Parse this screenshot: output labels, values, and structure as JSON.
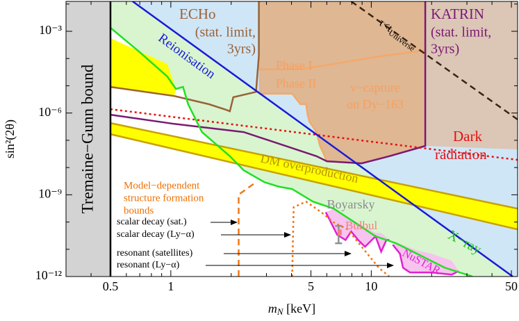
{
  "chart_data": {
    "type": "line",
    "log_x": true,
    "log_y": true,
    "xlabel": [
      "m",
      "N",
      " [keV]"
    ],
    "ylabel": "sin²(2θ)",
    "xlim": [
      0.3,
      53.7
    ],
    "ylim": [
      1e-12,
      0.0125
    ],
    "xticks": [
      0.5,
      1,
      5,
      10,
      50
    ],
    "xminorticks": [
      0.4,
      0.6,
      0.7,
      0.8,
      0.9,
      2,
      3,
      4,
      6,
      7,
      8,
      9,
      20,
      30,
      40
    ],
    "yticks": [
      {
        "value": 0.001,
        "label": "10⁻³"
      },
      {
        "value": 1e-06,
        "label": "10⁻⁶"
      },
      {
        "value": 1e-09,
        "label": "10⁻⁹"
      },
      {
        "value": 1e-12,
        "label": "10⁻¹²"
      }
    ],
    "yminorticks": [
      1e-11,
      1e-10,
      1e-08,
      1e-07,
      1e-05,
      0.0001,
      0.01
    ],
    "series": [
      {
        "style": "fill",
        "color": "#cfe6f7",
        "x": [
          0.645,
          53.7,
          53.7,
          50.8
        ],
        "y": [
          0.0125,
          0.0125,
          1e-12,
          1e-12
        ]
      },
      {
        "style": "fill",
        "color": "#d8f5d0",
        "x": [
          0.5,
          0.645,
          50.8,
          32.0,
          23.3,
          16.9,
          13.3,
          10.5,
          8.26,
          6.5,
          5.12,
          4.03,
          3.44,
          2.93,
          2.31,
          1.97,
          1.43,
          1.22,
          1.15,
          1.06,
          0.96,
          0.7,
          0.5
        ],
        "y": [
          0.0125,
          0.0125,
          1e-12,
          1e-12,
          2.1e-12,
          6.9e-12,
          1.66e-11,
          3e-11,
          9.7e-11,
          3.1e-10,
          5.6e-10,
          1.62e-09,
          2e-09,
          2.9e-09,
          7.9e-09,
          2.6e-08,
          2e-07,
          2.1e-06,
          9.1e-06,
          7.6e-06,
          2.2e-05,
          0.00017,
          0.00134
        ]
      },
      {
        "style": "fill",
        "color": "#dfb792",
        "x": [
          2.75,
          18.6,
          18.6,
          12.3,
          8.95,
          6.01,
          5.55,
          5.33,
          4.92,
          4.81,
          4.73,
          4.43,
          4.03,
          2.75
        ],
        "y": [
          0.0125,
          0.0125,
          6.2e-08,
          2.6e-08,
          1.42e-08,
          1.7e-08,
          6.2e-08,
          2e-07,
          4.8e-07,
          8.7e-07,
          2.1e-06,
          2.1e-06,
          5.1e-06,
          5.1e-06
        ]
      },
      {
        "style": "fill",
        "color": "#dcc6b6",
        "x": [
          18.6,
          53.7,
          53.7,
          18.6
        ],
        "y": [
          0.0125,
          0.0125,
          4.6e-08,
          6.2e-08
        ]
      },
      {
        "style": "fill",
        "color": "#ffff00",
        "x": [
          0.5,
          0.96,
          1.06,
          1.04,
          0.5
        ],
        "y": [
          0.00056,
          6.3e-05,
          7.6e-06,
          4.2e-06,
          9.1e-06
        ]
      },
      {
        "style": "fill",
        "color": "#ffff00",
        "x": [
          0.5,
          53.7,
          53.7,
          0.5
        ],
        "y": [
          4.3e-07,
          3.1e-10,
          5.4e-11,
          1.68e-07
        ]
      },
      {
        "style": "fill",
        "color": "#f7c3ef",
        "x": [
          5.93,
          6.76,
          7.44,
          7.94,
          8.6,
          9.31,
          10.5,
          11.2,
          11.9,
          12.3,
          11.2,
          10.5,
          8.26,
          6.5
        ],
        "y": [
          2.3e-10,
          3.4e-11,
          2.2e-11,
          4.5e-11,
          2.2e-11,
          1.24e-11,
          3e-11,
          8.2e-12,
          2.2e-11,
          2.2e-11,
          4e-11,
          4e-11,
          1.1e-10,
          3.1e-10
        ]
      },
      {
        "style": "fill",
        "color": "#f7c3ef",
        "x": [
          12.8,
          13.9,
          14.4,
          15.6,
          19.9,
          25.2,
          27.3,
          25.2,
          19.9,
          16.9,
          13.3
        ],
        "y": [
          1.47e-11,
          6.9e-12,
          2.1e-12,
          1.41e-12,
          1.41e-12,
          1.18e-12,
          1.58e-12,
          3.8e-12,
          6.9e-12,
          9.2e-12,
          1.8e-11
        ]
      },
      {
        "style": "fill",
        "color": "#d3d3d3",
        "x": [
          0.3,
          0.5,
          0.5,
          0.3
        ],
        "y": [
          1e-12,
          1e-12,
          0.0125,
          0.0125
        ]
      },
      {
        "style": "solid",
        "color": "#c8a200",
        "x": [
          0.5,
          53.7
        ],
        "y": [
          4.3e-07,
          3.1e-10
        ]
      },
      {
        "style": "solid",
        "color": "#c8a200",
        "x": [
          0.5,
          53.7
        ],
        "y": [
          1.68e-07,
          5.4e-11
        ]
      },
      {
        "style": "solid",
        "color": "#e020d0",
        "x": [
          5.93,
          6.76,
          7.44,
          7.94,
          8.6,
          9.31,
          10.5,
          11.2,
          11.9,
          12.3
        ],
        "y": [
          2.3e-10,
          3.4e-11,
          2.2e-11,
          4.5e-11,
          2.2e-11,
          1.24e-11,
          3e-11,
          8.2e-12,
          2.2e-11,
          2.2e-11
        ]
      },
      {
        "style": "solid",
        "color": "#e020d0",
        "x": [
          12.8,
          13.9,
          14.4,
          15.6,
          19.9,
          25.2,
          27.3
        ],
        "y": [
          1.47e-11,
          6.9e-12,
          2.1e-12,
          1.41e-12,
          1.41e-12,
          1.18e-12,
          1.58e-12
        ]
      },
      {
        "style": "solid",
        "color": "#9a6236",
        "x": [
          0.5,
          1.04,
          1.55,
          1.89,
          1.97,
          2.05,
          2.66,
          2.75,
          2.75
        ],
        "y": [
          9.1e-06,
          4.2e-06,
          2.1e-06,
          1.31e-06,
          1.16e-06,
          3.8e-06,
          6e-06,
          0.000128,
          0.0125
        ]
      },
      {
        "style": "solid",
        "color": "#f5a86a",
        "x": [
          2.75,
          4.36,
          6.5,
          10.5,
          18.6
        ],
        "y": [
          4e-05,
          4e-05,
          6.3e-05,
          0.000114,
          0.0002
        ]
      },
      {
        "style": "solid",
        "color": "#f5a86a",
        "x": [
          2.75,
          4.03,
          4.43,
          4.73,
          4.81,
          4.92,
          5.33,
          5.55,
          6.01,
          8.95,
          12.3,
          18.6
        ],
        "y": [
          5.1e-06,
          5.1e-06,
          2.1e-06,
          2.1e-06,
          8.7e-07,
          4.8e-07,
          2e-07,
          6.2e-08,
          1.7e-08,
          1.42e-08,
          2.6e-08,
          6.2e-08
        ]
      },
      {
        "style": "solid",
        "color": "#7a1a72",
        "x": [
          18.6,
          18.6,
          12.3,
          8.95,
          6.01,
          5.33,
          2.31,
          1.04,
          0.5
        ],
        "y": [
          0.0125,
          6.2e-08,
          2.6e-08,
          1.42e-08,
          1.7e-08,
          2.6e-08,
          2e-07,
          4e-07,
          8.7e-07
        ]
      },
      {
        "style": "dotted",
        "color": "#e81010",
        "x": [
          0.5,
          53.7
        ],
        "y": [
          1.39e-06,
          1.91e-08
        ]
      },
      {
        "style": "dashed",
        "color": "#3a2410",
        "x": [
          7.94,
          53.7
        ],
        "y": [
          0.0125,
          5.8e-07
        ]
      },
      {
        "style": "solid",
        "color": "#1a1ad8",
        "x": [
          0.645,
          50.8
        ],
        "y": [
          0.0125,
          1e-12
        ]
      },
      {
        "style": "solid",
        "color": "#22e022",
        "x": [
          0.5,
          0.7,
          0.96,
          1.06,
          1.15,
          1.22,
          1.43,
          1.97,
          2.31,
          2.93,
          3.44,
          4.03,
          5.12,
          6.5,
          8.26,
          10.5,
          13.3,
          16.9,
          23.3,
          32.0
        ],
        "y": [
          0.00134,
          0.00017,
          2.2e-05,
          7.6e-06,
          9.1e-06,
          2.1e-06,
          2e-07,
          2.6e-08,
          7.9e-09,
          2.9e-09,
          2e-09,
          1.62e-09,
          5.6e-10,
          3.1e-10,
          9.7e-11,
          3e-11,
          1.66e-11,
          6.9e-12,
          2.1e-12,
          1e-12
        ]
      },
      {
        "style": "dashed",
        "color": "#f07818",
        "x": [
          2.18,
          2.18,
          2.66
        ],
        "y": [
          1e-12,
          1.01e-09,
          2.9e-09
        ]
      },
      {
        "style": "dotted",
        "color": "#f07818",
        "x": [
          4.03,
          4.1,
          4.73,
          5.63,
          6.5,
          7.62,
          8.95,
          10.9,
          12.3
        ],
        "y": [
          1e-12,
          3.5e-10,
          5.6e-10,
          2.3e-10,
          9.7e-11,
          5.4e-11,
          1.24e-11,
          2.1e-12,
          1e-12
        ]
      },
      {
        "style": "solid",
        "color": "#000000",
        "x": [
          0.5,
          0.5
        ],
        "y": [
          1e-12,
          0.0125
        ]
      },
      {
        "style": "errorbar",
        "color": "#909090",
        "x": [
          6.87
        ],
        "ylow": [
          1.66e-11
        ],
        "yhigh": [
          7.2e-11
        ]
      },
      {
        "style": "point",
        "color": "#f08080",
        "x": [
          6.95
        ],
        "y": [
          4.2e-11
        ]
      }
    ],
    "annotations": [
      "Tremaine−Gunn bound",
      "ECHo",
      "(stat. limit,",
      "3yrs)",
      "KATRIN",
      "(stat. limit,",
      "3yrs)",
      "Reionisation",
      "Phase I",
      "Phase II",
      "ν−capture",
      "on Dy−163",
      "τ<t",
      "Universe",
      "Dark",
      "radiation",
      "DM overproduction",
      "Model−dependent",
      "structure formation",
      "bounds",
      "Boyarsky",
      "Bulbul",
      "X−ray",
      "NuSTAR",
      "scalar decay (sat.)",
      "scalar decay (Ly−α)",
      "resonant (satellites)",
      "resonant (Ly−α)"
    ]
  }
}
